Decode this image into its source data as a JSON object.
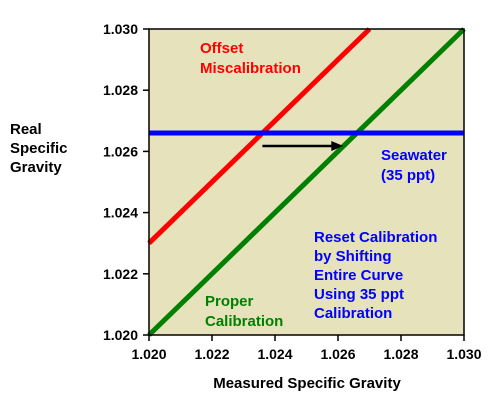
{
  "chart_data": {
    "type": "line",
    "xlabel": "Measured Specific Gravity",
    "ylabel": [
      "Real",
      "Specific",
      "Gravity"
    ],
    "xlim": [
      1.02,
      1.03
    ],
    "ylim": [
      1.02,
      1.03
    ],
    "x_ticks": [
      "1.020",
      "1.022",
      "1.024",
      "1.026",
      "1.028",
      "1.030"
    ],
    "y_ticks": [
      "1.020",
      "1.022",
      "1.024",
      "1.026",
      "1.028",
      "1.030"
    ],
    "plot_background": "#e6e2bc",
    "grid": false,
    "series": [
      {
        "key": "offset",
        "color": "#ff0000",
        "x": [
          1.02,
          1.027
        ],
        "y": [
          1.023,
          1.03
        ]
      },
      {
        "key": "proper",
        "color": "#008000",
        "x": [
          1.02,
          1.03
        ],
        "y": [
          1.02,
          1.03
        ]
      },
      {
        "key": "seawater",
        "color": "#0000ff",
        "x": [
          1.02,
          1.03
        ],
        "y": [
          1.0266,
          1.0266
        ]
      }
    ],
    "arrow": {
      "from": [
        1.0236,
        1.0266
      ],
      "to": [
        1.0262,
        1.0266
      ],
      "color": "#000000"
    },
    "annotations": {
      "offset": {
        "lines": [
          "Offset",
          "Miscalibration"
        ],
        "color": "#ff0000"
      },
      "seawater": {
        "lines": [
          "Seawater",
          "(35 ppt)"
        ],
        "color": "#0000ff"
      },
      "reset": {
        "lines": [
          "Reset Calibration",
          "by Shifting",
          "Entire Curve",
          "Using 35 ppt",
          "Calibration"
        ],
        "color": "#0000ff"
      },
      "proper": {
        "lines": [
          "Proper",
          "Calibration"
        ],
        "color": "#008000"
      }
    }
  }
}
